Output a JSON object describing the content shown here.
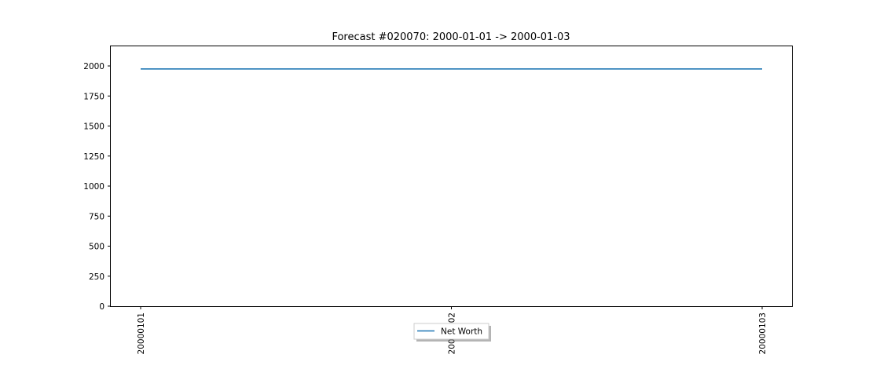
{
  "chart_data": {
    "type": "line",
    "title": "Forecast #020070: 2000-01-01 -> 2000-01-03",
    "xlabel": "",
    "ylabel": "",
    "x": [
      "20000101",
      "20000102",
      "20000103"
    ],
    "x_tick_labels": [
      "20000101",
      "20000102",
      "20000103"
    ],
    "x_tick_rotation": 90,
    "ylim": [
      0,
      2170
    ],
    "y_ticks": [
      0,
      250,
      500,
      750,
      1000,
      1250,
      1500,
      1750,
      2000
    ],
    "y_tick_labels": [
      "0",
      "250",
      "500",
      "750",
      "1000",
      "1250",
      "1500",
      "1750",
      "2000"
    ],
    "grid": false,
    "legend_position": "bottom-center",
    "legend_shadow": true,
    "series": [
      {
        "name": "Net Worth",
        "color": "#1f77b4",
        "values": [
          1975,
          1975,
          1975
        ]
      }
    ]
  }
}
